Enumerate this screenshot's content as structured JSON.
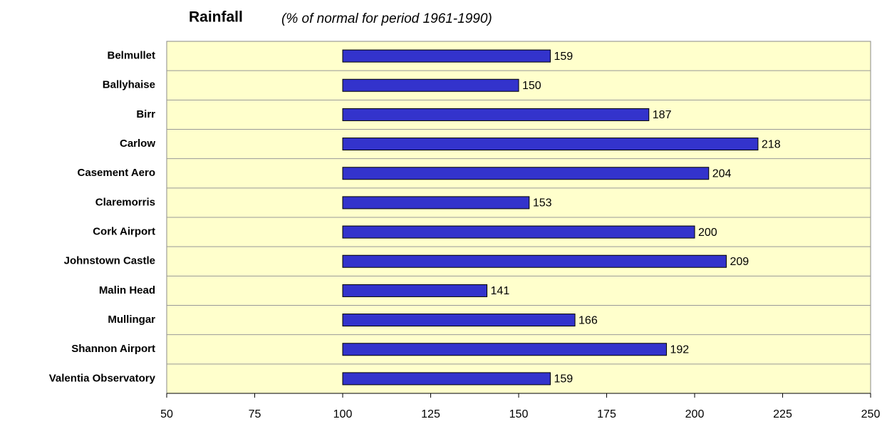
{
  "chart_data": {
    "type": "hbar",
    "title": "Rainfall",
    "subtitle": "(% of normal for period 1961-1990)",
    "categories": [
      "Belmullet",
      "Ballyhaise",
      "Birr",
      "Carlow",
      "Casement Aero",
      "Claremorris",
      "Cork Airport",
      "Johnstown Castle",
      "Malin Head",
      "Mullingar",
      "Shannon Airport",
      "Valentia Observatory"
    ],
    "values": [
      159,
      150,
      187,
      218,
      204,
      153,
      200,
      209,
      141,
      166,
      192,
      159
    ],
    "color": "#3333cc",
    "bar_base": 100,
    "xlim": [
      50,
      250
    ],
    "xticks": [
      50,
      75,
      100,
      125,
      150,
      175,
      200,
      225,
      250
    ],
    "plot_background": "#ffffcc"
  }
}
